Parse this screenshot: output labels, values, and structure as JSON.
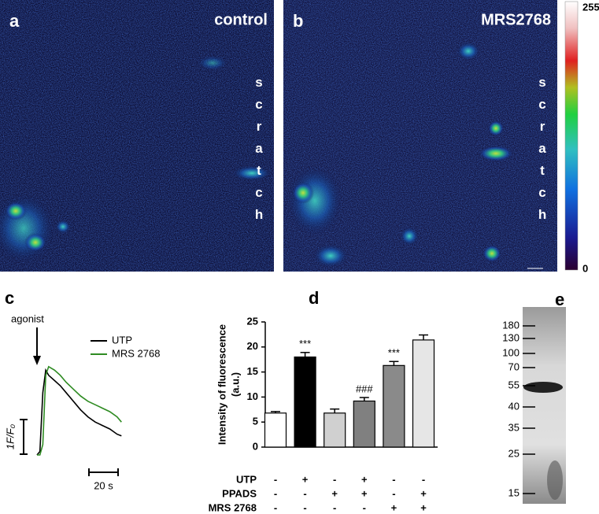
{
  "panels": [
    {
      "label": "a",
      "caption": "control",
      "annotation": "scratch"
    },
    {
      "label": "b",
      "caption": "MRS2768",
      "annotation": "scratch"
    }
  ],
  "colorbar": {
    "ticks": [
      0,
      255
    ]
  },
  "chart_data": [
    {
      "type": "line",
      "label": "c",
      "annotation": "agonist",
      "x": [
        0,
        2,
        4,
        6,
        8,
        12,
        16,
        20,
        25,
        30,
        35,
        40,
        45,
        50,
        55,
        58
      ],
      "series": [
        {
          "name": "UTP",
          "color": "#000000",
          "values": [
            0,
            0.1,
            1.8,
            2.45,
            2.3,
            2.15,
            2.0,
            1.8,
            1.55,
            1.3,
            1.1,
            0.95,
            0.85,
            0.75,
            0.6,
            0.55
          ]
        },
        {
          "name": "MRS 2768",
          "color": "#2e8b22",
          "values": [
            0,
            0,
            0.3,
            2.3,
            2.55,
            2.45,
            2.3,
            2.1,
            1.9,
            1.7,
            1.55,
            1.45,
            1.35,
            1.25,
            1.1,
            0.95
          ]
        }
      ],
      "scale_bars": [
        {
          "axis": "x",
          "value": 20,
          "label": "20 s"
        },
        {
          "axis": "y",
          "value": 1,
          "label": "1F/F₀"
        }
      ]
    },
    {
      "type": "bar",
      "label": "d",
      "ylabel": [
        "Intensity of fluorescence",
        "(a.u.)"
      ],
      "values": [
        6.8,
        18,
        6.8,
        9.2,
        16.3,
        21.4
      ],
      "errors": [
        0.3,
        0.9,
        0.8,
        0.7,
        0.8,
        1.0
      ],
      "colors": [
        "#ffffff",
        "#000000",
        "#d0d0d0",
        "#808080",
        "#8a8a8a",
        "#e6e6e6"
      ],
      "ylim": [
        0,
        25
      ],
      "yticks": [
        0,
        5,
        10,
        15,
        20,
        25
      ],
      "annotations": [
        {
          "index": 1,
          "text": "***"
        },
        {
          "index": 3,
          "text": "###"
        },
        {
          "index": 4,
          "text": "***"
        }
      ],
      "conditions": [
        {
          "name": "UTP",
          "marks": [
            "-",
            "+",
            "-",
            "+",
            "-",
            "-"
          ]
        },
        {
          "name": "PPADS",
          "marks": [
            "-",
            "-",
            "+",
            "+",
            "-",
            "+"
          ]
        },
        {
          "name": "MRS 2768",
          "marks": [
            "-",
            "-",
            "-",
            "-",
            "+",
            "+"
          ]
        }
      ]
    }
  ],
  "blot": {
    "label": "e",
    "markers": [
      180,
      130,
      100,
      70,
      55,
      40,
      35,
      25,
      15
    ]
  }
}
